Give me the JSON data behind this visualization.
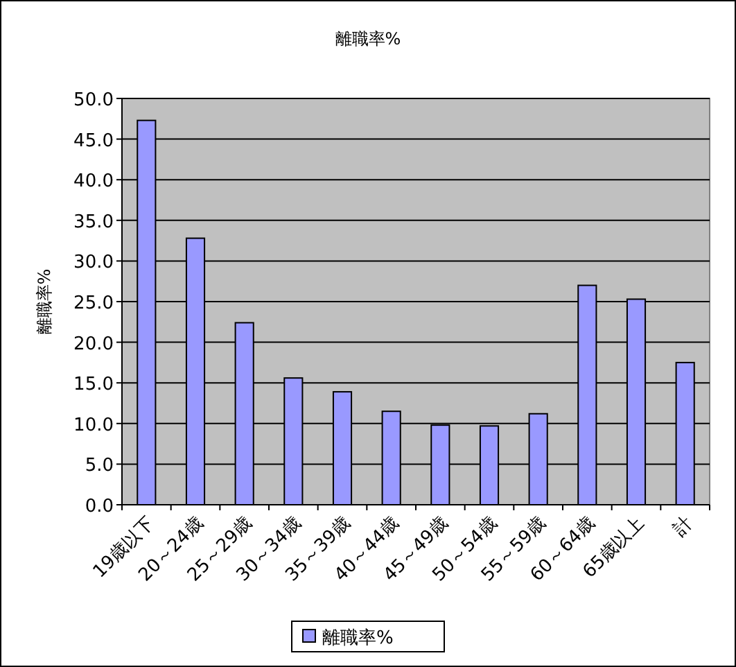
{
  "chart_data": {
    "type": "bar",
    "title": "離職率%",
    "ylabel": "離職率%",
    "categories": [
      "19歳以下",
      "20～24歳",
      "25～29歳",
      "30～34歳",
      "35～39歳",
      "40～44歳",
      "45～49歳",
      "50～54歳",
      "55～59歳",
      "60～64歳",
      "65歳以上",
      "計"
    ],
    "series": [
      {
        "name": "離職率%",
        "color": "#9999ff",
        "values": [
          47.3,
          32.8,
          22.4,
          15.6,
          13.9,
          11.5,
          9.8,
          9.7,
          11.2,
          27.0,
          25.3,
          17.5
        ]
      }
    ],
    "ylim": [
      0,
      50
    ],
    "yticks": [
      {
        "value": 0,
        "label": "0.0"
      },
      {
        "value": 5,
        "label": "5.0"
      },
      {
        "value": 10,
        "label": "10.0"
      },
      {
        "value": 15,
        "label": "15.0"
      },
      {
        "value": 20,
        "label": "20.0"
      },
      {
        "value": 25,
        "label": "25.0"
      },
      {
        "value": 30,
        "label": "30.0"
      },
      {
        "value": 35,
        "label": "35.0"
      },
      {
        "value": 40,
        "label": "40.0"
      },
      {
        "value": 45,
        "label": "45.0"
      },
      {
        "value": 50,
        "label": "50.0"
      }
    ],
    "grid": "y",
    "legend": "bottom"
  }
}
